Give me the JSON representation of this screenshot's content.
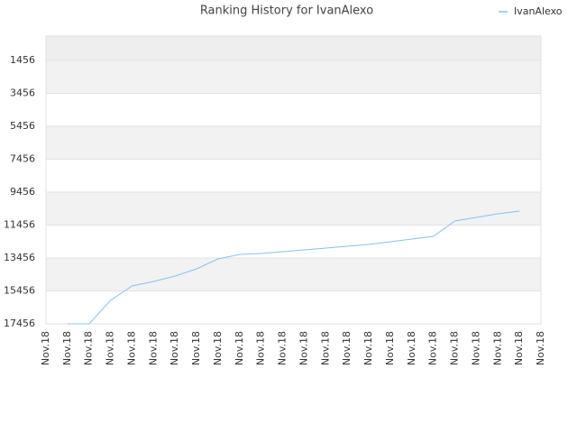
{
  "chart_data": {
    "type": "line",
    "title": "Ranking History for IvanAlexo",
    "categories": [
      "Nov.18",
      "Nov.18",
      "Nov.18",
      "Nov.18",
      "Nov.18",
      "Nov.18",
      "Nov.18",
      "Nov.18",
      "Nov.18",
      "Nov.18",
      "Nov.18",
      "Nov.18",
      "Nov.18",
      "Nov.18",
      "Nov.18",
      "Nov.18",
      "Nov.18",
      "Nov.18",
      "Nov.18",
      "Nov.18",
      "Nov.18",
      "Nov.18",
      "Nov.18",
      "Nov.18"
    ],
    "series": [
      {
        "name": "IvanAlexo",
        "color": "#88c0f0",
        "values": [
          null,
          17456,
          17456,
          16031,
          15155,
          14881,
          14552,
          14114,
          13511,
          13237,
          13182,
          13073,
          12963,
          12853,
          12744,
          12634,
          12470,
          12305,
          12141,
          11209,
          10990,
          10771,
          10607,
          null
        ]
      }
    ],
    "ylim": [
      17456,
      -24
    ],
    "yticks": [
      17456,
      15456,
      13456,
      11456,
      9456,
      7456,
      5456,
      3456,
      1456
    ],
    "grid": true,
    "legend": "top-right"
  }
}
